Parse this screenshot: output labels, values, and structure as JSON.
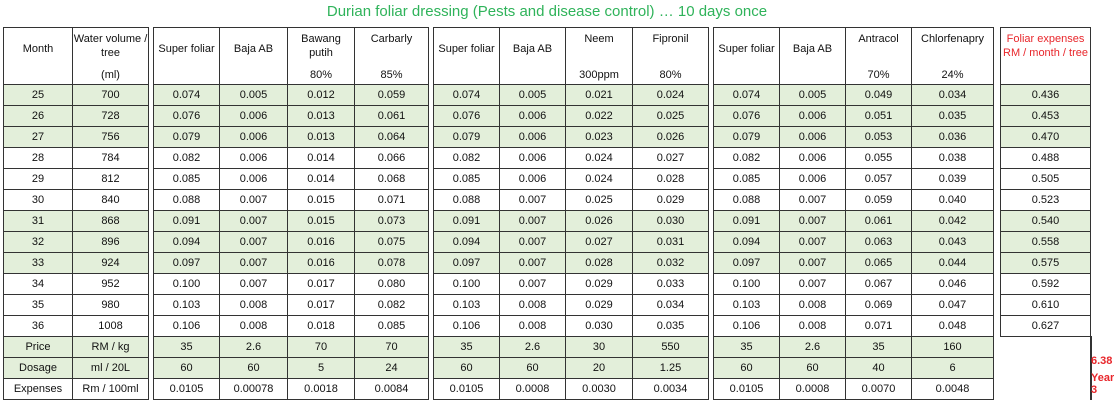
{
  "title": "Durian foliar dressing (Pests and disease control) … 10 days once",
  "headers": [
    {
      "name": "Month",
      "unit": ""
    },
    {
      "name": "Water volume / tree",
      "unit": "(ml)"
    },
    {
      "name": "Super foliar",
      "unit": ""
    },
    {
      "name": "Baja AB",
      "unit": ""
    },
    {
      "name": "Bawang putih",
      "unit": "80%"
    },
    {
      "name": "Carbarly",
      "unit": "85%"
    },
    {
      "name": "Super foliar",
      "unit": ""
    },
    {
      "name": "Baja AB",
      "unit": ""
    },
    {
      "name": "Neem",
      "unit": "300ppm"
    },
    {
      "name": "Fipronil",
      "unit": "80%"
    },
    {
      "name": "Super foliar",
      "unit": ""
    },
    {
      "name": "Baja AB",
      "unit": ""
    },
    {
      "name": "Antracol",
      "unit": "70%"
    },
    {
      "name": "Chlorfenapry",
      "unit": "24%"
    },
    {
      "name": "Foliar expenses RM / month / tree",
      "unit": ""
    }
  ],
  "rows": [
    [
      "25",
      "700",
      "0.074",
      "0.005",
      "0.012",
      "0.059",
      "0.074",
      "0.005",
      "0.021",
      "0.024",
      "0.074",
      "0.005",
      "0.049",
      "0.034",
      "0.436"
    ],
    [
      "26",
      "728",
      "0.076",
      "0.006",
      "0.013",
      "0.061",
      "0.076",
      "0.006",
      "0.022",
      "0.025",
      "0.076",
      "0.006",
      "0.051",
      "0.035",
      "0.453"
    ],
    [
      "27",
      "756",
      "0.079",
      "0.006",
      "0.013",
      "0.064",
      "0.079",
      "0.006",
      "0.023",
      "0.026",
      "0.079",
      "0.006",
      "0.053",
      "0.036",
      "0.470"
    ],
    [
      "28",
      "784",
      "0.082",
      "0.006",
      "0.014",
      "0.066",
      "0.082",
      "0.006",
      "0.024",
      "0.027",
      "0.082",
      "0.006",
      "0.055",
      "0.038",
      "0.488"
    ],
    [
      "29",
      "812",
      "0.085",
      "0.006",
      "0.014",
      "0.068",
      "0.085",
      "0.006",
      "0.024",
      "0.028",
      "0.085",
      "0.006",
      "0.057",
      "0.039",
      "0.505"
    ],
    [
      "30",
      "840",
      "0.088",
      "0.007",
      "0.015",
      "0.071",
      "0.088",
      "0.007",
      "0.025",
      "0.029",
      "0.088",
      "0.007",
      "0.059",
      "0.040",
      "0.523"
    ],
    [
      "31",
      "868",
      "0.091",
      "0.007",
      "0.015",
      "0.073",
      "0.091",
      "0.007",
      "0.026",
      "0.030",
      "0.091",
      "0.007",
      "0.061",
      "0.042",
      "0.540"
    ],
    [
      "32",
      "896",
      "0.094",
      "0.007",
      "0.016",
      "0.075",
      "0.094",
      "0.007",
      "0.027",
      "0.031",
      "0.094",
      "0.007",
      "0.063",
      "0.043",
      "0.558"
    ],
    [
      "33",
      "924",
      "0.097",
      "0.007",
      "0.016",
      "0.078",
      "0.097",
      "0.007",
      "0.028",
      "0.032",
      "0.097",
      "0.007",
      "0.065",
      "0.044",
      "0.575"
    ],
    [
      "34",
      "952",
      "0.100",
      "0.007",
      "0.017",
      "0.080",
      "0.100",
      "0.007",
      "0.029",
      "0.033",
      "0.100",
      "0.007",
      "0.067",
      "0.046",
      "0.592"
    ],
    [
      "35",
      "980",
      "0.103",
      "0.008",
      "0.017",
      "0.082",
      "0.103",
      "0.008",
      "0.029",
      "0.034",
      "0.103",
      "0.008",
      "0.069",
      "0.047",
      "0.610"
    ],
    [
      "36",
      "1008",
      "0.106",
      "0.008",
      "0.018",
      "0.085",
      "0.106",
      "0.008",
      "0.030",
      "0.035",
      "0.106",
      "0.008",
      "0.071",
      "0.048",
      "0.627"
    ]
  ],
  "footer_rows": [
    [
      "Price",
      "RM / kg",
      "35",
      "2.6",
      "70",
      "70",
      "35",
      "2.6",
      "30",
      "550",
      "35",
      "2.6",
      "35",
      "160"
    ],
    [
      "Dosage",
      "ml / 20L",
      "60",
      "60",
      "5",
      "24",
      "60",
      "60",
      "20",
      "1.25",
      "60",
      "60",
      "40",
      "6"
    ],
    [
      "Expenses",
      "Rm / 100ml",
      "0.0105",
      "0.00078",
      "0.0018",
      "0.0084",
      "0.0105",
      "0.0008",
      "0.0030",
      "0.0034",
      "0.0105",
      "0.0008",
      "0.0070",
      "0.0048"
    ]
  ],
  "total": {
    "value": "6.38",
    "label": "Year 3"
  },
  "green_rows": [
    0,
    1,
    2,
    6,
    7,
    8
  ],
  "colors": {
    "title": "#2fb35a",
    "highlight": "#e8262b",
    "row_fill": "#e3efda"
  }
}
